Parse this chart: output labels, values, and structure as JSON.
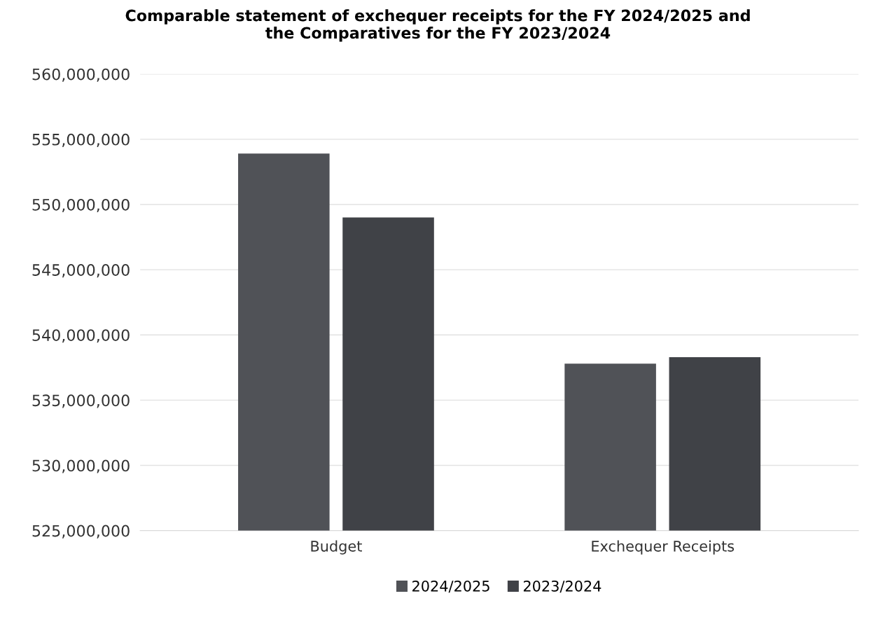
{
  "chart_data": {
    "type": "bar",
    "title": "Comparable statement of exchequer receipts for the FY 2024/2025 and\nthe Comparatives for the FY 2023/2024",
    "categories": [
      "Budget",
      "Exchequer Receipts"
    ],
    "series": [
      {
        "name": "2024/2025",
        "color": "#505257",
        "values": [
          553900000,
          537800000
        ]
      },
      {
        "name": "2023/2024",
        "color": "#404247",
        "values": [
          549000000,
          538300000
        ]
      }
    ],
    "ylim": [
      525000000,
      560000000
    ],
    "yticks": [
      {
        "value": 525000000,
        "label": "525,000,000"
      },
      {
        "value": 530000000,
        "label": "530,000,000"
      },
      {
        "value": 535000000,
        "label": "535,000,000"
      },
      {
        "value": 540000000,
        "label": "540,000,000"
      },
      {
        "value": 545000000,
        "label": "545,000,000"
      },
      {
        "value": 550000000,
        "label": "550,000,000"
      },
      {
        "value": 555000000,
        "label": "555,000,000"
      },
      {
        "value": 560000000,
        "label": "560,000,000"
      }
    ],
    "grid": "y",
    "legend": "bottom"
  }
}
